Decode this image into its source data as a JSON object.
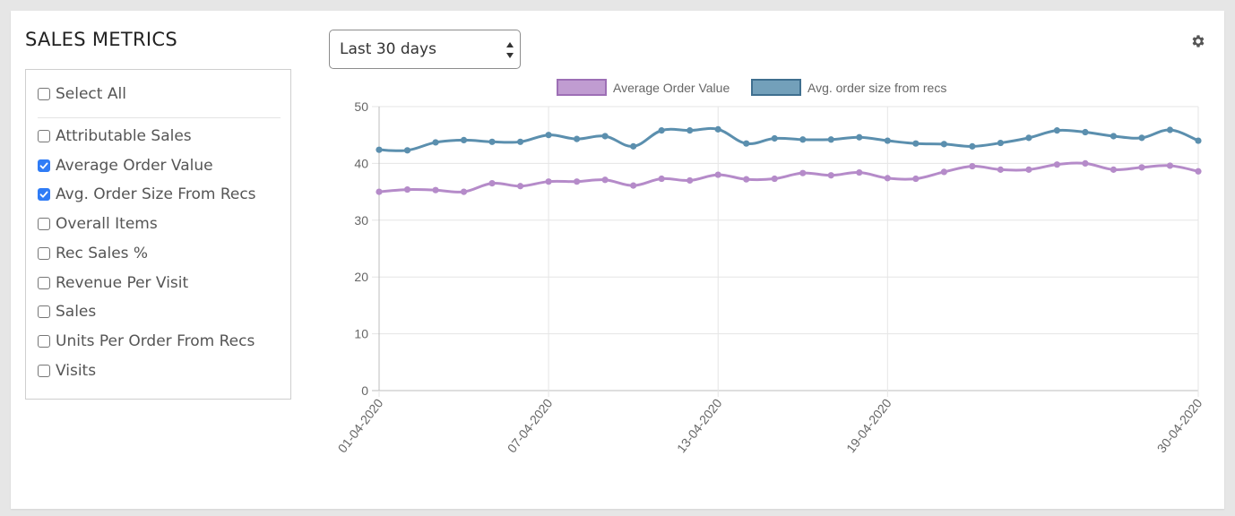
{
  "panel": {
    "title": "SALES METRICS",
    "select_all": "Select All",
    "metrics": [
      {
        "label": "Attributable Sales",
        "checked": false
      },
      {
        "label": "Average Order Value",
        "checked": true
      },
      {
        "label": "Avg. Order Size From Recs",
        "checked": true
      },
      {
        "label": "Overall Items",
        "checked": false
      },
      {
        "label": "Rec Sales %",
        "checked": false
      },
      {
        "label": "Revenue Per Visit",
        "checked": false
      },
      {
        "label": "Sales",
        "checked": false
      },
      {
        "label": "Units Per Order From Recs",
        "checked": false
      },
      {
        "label": "Visits",
        "checked": false
      }
    ]
  },
  "range_select": {
    "value": "Last 30 days"
  },
  "settings_icon": "gear-icon",
  "colors": {
    "series1": "#b58bc9",
    "series2": "#5b8fae",
    "checkbox": "#2f7cf6"
  },
  "chart_data": {
    "type": "line",
    "x": [
      "01-04-2020",
      "02-04-2020",
      "03-04-2020",
      "04-04-2020",
      "05-04-2020",
      "06-04-2020",
      "07-04-2020",
      "08-04-2020",
      "09-04-2020",
      "10-04-2020",
      "11-04-2020",
      "12-04-2020",
      "13-04-2020",
      "14-04-2020",
      "15-04-2020",
      "16-04-2020",
      "17-04-2020",
      "18-04-2020",
      "19-04-2020",
      "20-04-2020",
      "21-04-2020",
      "22-04-2020",
      "23-04-2020",
      "24-04-2020",
      "25-04-2020",
      "26-04-2020",
      "27-04-2020",
      "28-04-2020",
      "29-04-2020",
      "30-04-2020"
    ],
    "x_tick_labels": [
      "01-04-2020",
      "07-04-2020",
      "13-04-2020",
      "19-04-2020",
      "30-04-2020"
    ],
    "y_ticks": [
      0,
      10,
      20,
      30,
      40,
      50
    ],
    "ylim": [
      0,
      50
    ],
    "legend_position": "top",
    "series": [
      {
        "name": "Average Order Value",
        "values": [
          35.0,
          35.4,
          35.3,
          35.0,
          36.5,
          36.0,
          36.8,
          36.8,
          37.1,
          36.1,
          37.3,
          37.0,
          38.0,
          37.2,
          37.3,
          38.3,
          37.9,
          38.4,
          37.4,
          37.3,
          38.5,
          39.5,
          38.9,
          38.9,
          39.8,
          40.0,
          38.9,
          39.3,
          39.6,
          38.6
        ]
      },
      {
        "name": "Avg. order size from recs",
        "values": [
          42.4,
          42.3,
          43.7,
          44.1,
          43.8,
          43.8,
          45.0,
          44.3,
          44.8,
          43.0,
          45.8,
          45.8,
          46.0,
          43.5,
          44.4,
          44.2,
          44.2,
          44.6,
          44.0,
          43.5,
          43.4,
          43.0,
          43.6,
          44.5,
          45.8,
          45.5,
          44.8,
          44.5,
          45.9,
          44.0
        ]
      }
    ]
  }
}
